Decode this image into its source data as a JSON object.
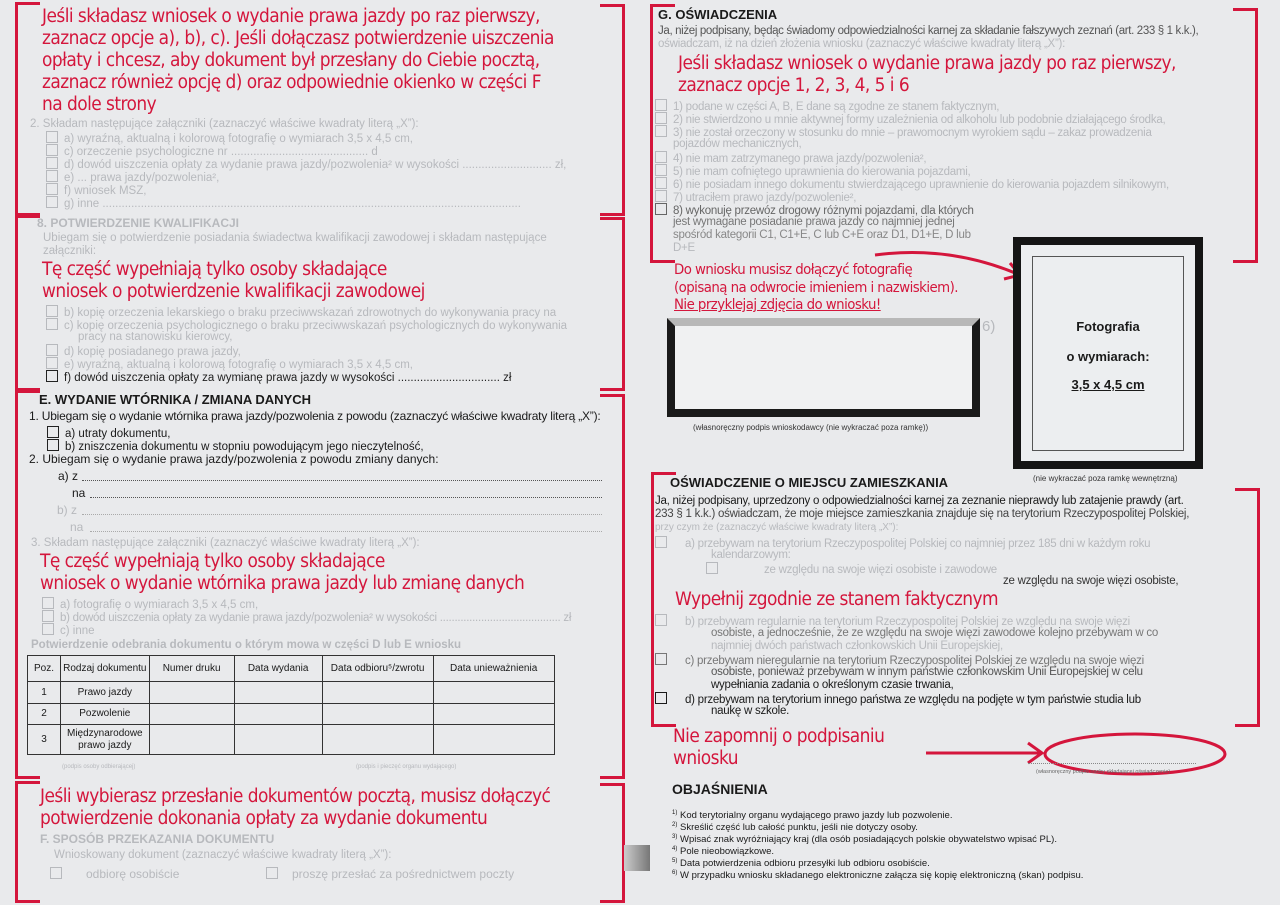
{
  "section_d": {
    "intro": "2. Składam następujące załączniki (zaznaczyć właściwe kwadraty literą „X”):",
    "items": [
      "a) wyraźną, aktualną i kolorową fotografię o wymiarach 3,5 x 4,5 cm,",
      "c) orzeczenie psychologiczne nr ........................................... d",
      "d) dowód uiszczenia opłaty za wydanie prawa jazdy/pozwolenia² w wysokości ............................ zł,",
      "e) ... prawa jazdy/pozwolenia²,",
      "f) wniosek MSZ,",
      "g) inne ..................................................................................................................................."
    ]
  },
  "section_qual": {
    "title": "8. POTWIERDZENIE KWALIFIKACJI",
    "intro_1": "Ubiegam się o potwierdzenie posiadania świadectwa kwalifikacji zawodowej i składam następujące",
    "intro_2": "załączniki:",
    "items": [
      "b) kopię orzeczenia lekarskiego o braku przeciwwskazań zdrowotnych do wykonywania pracy na",
      "c) kopię orzeczenia psychologicznego o braku przeciwwskazań psychologicznych do wykonywania",
      "pracy na stanowisku kierowcy,",
      "d) kopię posiadanego prawa jazdy,",
      "e) wyraźną, aktualną i kolorową fotografię o wymiarach 3,5 x 4,5 cm,",
      "f) dowód uiszczenia opłaty za wymianę prawa jazdy w wysokości ................................ zł"
    ]
  },
  "section_e": {
    "title": "E. WYDANIE WTÓRNIKA / ZMIANA DANYCH",
    "q1": "1. Ubiegam się o wydanie wtórnika prawa jazdy/pozwolenia z powodu (zaznaczyć właściwe kwadraty literą „X”):",
    "q1_options": [
      "a) utraty dokumentu,",
      "b) zniszczenia dokumentu w stopniu powodującym jego nieczytelność,"
    ],
    "q2": "2. Ubiegam się o wydanie prawa jazdy/pozwolenia z powodu zmiany danych:",
    "q2_fields": [
      "a) z",
      "na",
      "b) z",
      "na"
    ],
    "q3": "3. Składam następujące załączniki (zaznaczyć właściwe kwadraty literą „X”):",
    "q3_options": [
      "a) fotografię o wymiarach 3,5 x 4,5 cm,",
      "b) dowód uiszczenia opłaty za wydanie prawa jazdy/pozwolenia² w wysokości ......................................... zł",
      "c) inne"
    ],
    "confirm_title": "Potwierdzenie odebrania dokumentu o którym mowa w części D lub E wniosku",
    "table": {
      "headers": [
        "Poz.",
        "Rodzaj dokumentu",
        "Numer druku",
        "Data wydania",
        "Data odbioru⁵/zwrotu",
        "Data unieważnienia"
      ],
      "rows": [
        [
          "1",
          "Prawo jazdy",
          "",
          "",
          "",
          ""
        ],
        [
          "2",
          "Pozwolenie",
          "",
          "",
          "",
          ""
        ],
        [
          "3",
          "Międzynarodowe prawo jazdy",
          "",
          "",
          "",
          ""
        ]
      ]
    },
    "sign_receiver": "(podpis osoby odbierającej)",
    "sign_office": "(podpis i pieczęć organu wydającego)"
  },
  "section_f": {
    "title": "F. SPOSÓB PRZEKAZANIA DOKUMENTU",
    "intro": "Wnioskowany dokument (zaznaczyć właściwe kwadraty literą „X”):",
    "options": [
      "odbiorę osobiście",
      "proszę przesłać za pośrednictwem poczty"
    ]
  },
  "section_g": {
    "title": "G. OŚWIADCZENIA",
    "intro_1": "Ja, niżej podpisany, będąc świadomy odpowiedzialności karnej za składanie fałszywych zeznań (art. 233 § 1 k.k.),",
    "intro_2": "oświadczam, iż na dzień złożenia wniosku (zaznaczyć właściwe kwadraty literą „X”):",
    "items": [
      "1) podane w części A, B, E dane są zgodne ze stanem faktycznym,",
      "2) nie stwierdzono u mnie aktywnej formy uzależnienia od alkoholu lub podobnie działającego środka,",
      "3) nie został orzeczony w stosunku do mnie – prawomocnym wyrokiem sądu – zakaz prowadzenia",
      "pojazdów mechanicznych,",
      "4) nie mam zatrzymanego prawa jazdy/pozwolenia²,",
      "5) nie mam cofniętego uprawnienia do kierowania pojazdami,",
      "6) nie posiadam innego dokumentu stwierdzającego uprawnienie do kierowania pojazdem silnikowym,",
      "7) utraciłem prawo jazdy/pozwolenie²,",
      "8) wykonuję przewóz drogowy różnymi pojazdami, dla których",
      "jest wymagane posiadanie prawa jazdy co najmniej jednej",
      "spośród kategorii C1, C1+E, C lub C+E oraz D1, D1+E, D lub",
      "D+E"
    ]
  },
  "signature": {
    "footnote_mark": "6)",
    "caption": "(własnoręczny podpis wnioskodawcy (nie wykraczać poza ramkę))"
  },
  "photo": {
    "line1": "Fotografia",
    "line2": "o wymiarach:",
    "line3": "3,5 x 4,5 cm",
    "caption": "(nie wykraczać poza ramkę wewnętrzną)"
  },
  "residence": {
    "title": "OŚWIADCZENIE O MIEJSCU ZAMIESZKANIA",
    "intro_1": "Ja, niżej podpisany, uprzedzony o odpowiedzialności karnej za zeznanie nieprawdy lub zatajenie prawdy  (art.",
    "intro_2": "233 § 1 k.k.) oświadczam, że moje miejsce zamieszkania znajduje się na terytorium Rzeczypospolitej Polskiej,",
    "intro_3": "przy czym że (zaznaczyć właściwe kwadraty literą „X”):",
    "a_1": "a)  przebywam na terytorium Rzeczypospolitej Polskiej co najmniej przez 185 dni w każdym roku",
    "a_2": "kalendarzowym:",
    "a_sub1": "ze względu na swoje więzi osobiste i zawodowe",
    "a_sub2": "ze względu na swoje więzi osobiste,",
    "b_1": "b)  przebywam regularnie na terytorium Rzeczypospolitej Polskiej ze względu na swoje więzi",
    "b_2": "osobiste, a jednocześnie, że ze względu na swoje więzi zawodowe kolejno przebywam w co",
    "b_3": "najmniej dwóch państwach członkowskich Unii Europejskiej,",
    "c_1": "c)  przebywam nieregularnie na terytorium Rzeczypospolitej Polskiej ze względu na swoje więzi",
    "c_2": "osobiste, ponieważ przebywam w innym państwie członkowskim Unii Europejskiej w celu",
    "c_3": "wypełniania zadania o określonym czasie trwania,",
    "d_1": "d)  przebywam na terytorium innego państwa ze względu na podjęte w tym państwie studia lub",
    "d_2": "naukę w szkole."
  },
  "final_signature_caption": "(własnoręczny podpis osoby składającej oświadczenie)",
  "explanations": {
    "title": "OBJAŚNIENIA",
    "items": [
      {
        "mark": "1)",
        "text": "Kod terytorialny organu wydającego prawo jazdy lub pozwolenie."
      },
      {
        "mark": "2)",
        "text": "Skreślić część lub całość punktu, jeśli nie dotyczy osoby."
      },
      {
        "mark": "3)",
        "text": "Wpisać znak wyróżniający kraj (dla osób posiadających polskie obywatelstwo wpisać PL)."
      },
      {
        "mark": "4)",
        "text": "Pole nieobowiązkowe."
      },
      {
        "mark": "5)",
        "text": "Data potwierdzenia odbioru przesyłki lub odbioru osobiście."
      },
      {
        "mark": "6)",
        "text": "W przypadku wniosku składanego elektroniczne załącza się kopię elektroniczną (skan) podpisu."
      }
    ]
  },
  "annotations": {
    "first_license": [
      "Jeśli składasz wniosek o wydanie prawa jazdy po raz pierwszy,",
      "zaznacz opcje a), b), c). Jeśli dołączasz potwierdzenie uiszczenia",
      "opłaty i chcesz, aby dokument był przesłany do Ciebie pocztą,",
      "zaznacz również opcję d) oraz odpowiednie okienko w części F",
      "na dole strony"
    ],
    "qualification": [
      "Tę część wypełniają tylko osoby składające",
      "wniosek o potwierdzenie kwalifikacji zawodowej"
    ],
    "duplicate": [
      "Tę część wypełniają tylko osoby składające",
      "wniosek o wydanie wtórnika prawa jazdy lub zmianę danych"
    ],
    "mail": [
      "Jeśli wybierasz przesłanie dokumentów pocztą, musisz dołączyć",
      "potwierdzenie dokonania opłaty za wydanie dokumentu"
    ],
    "declarations": [
      "Jeśli składasz wniosek o wydanie prawa jazdy po raz pierwszy,",
      "zaznacz opcje 1, 2, 3, 4, 5 i 6"
    ],
    "photo": [
      "Do wniosku musisz dołączyć fotografię",
      "(opisaną na odwrocie imieniem i nazwiskiem).",
      "Nie przyklejaj zdjęcia do wniosku!"
    ],
    "residence": "Wypełnij zgodnie ze stanem faktycznym",
    "sign": [
      "Nie zapomnij o podpisaniu",
      "wniosku"
    ]
  },
  "colors": {
    "annotation": "#d4163c",
    "background": "#e9eaec"
  }
}
